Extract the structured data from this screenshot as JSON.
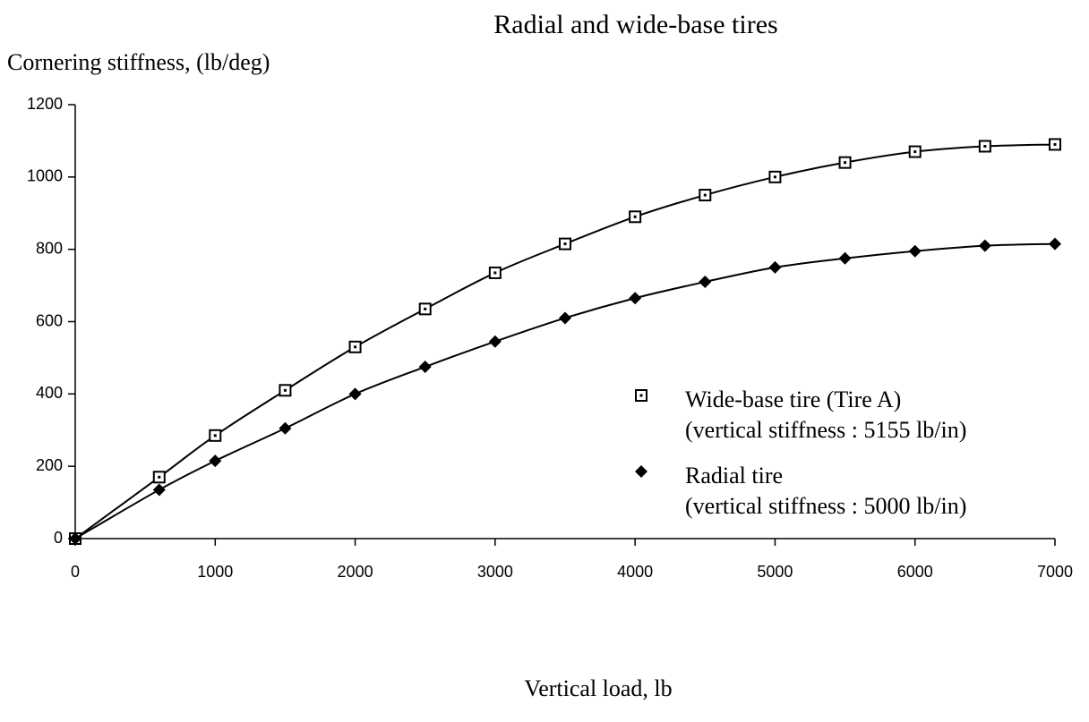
{
  "chart_data": {
    "type": "line",
    "title": "Radial and wide-base tires",
    "y_label": "Cornering stiffness, (lb/deg)",
    "x_label": "Vertical load, lb",
    "x": [
      0,
      600,
      1000,
      1500,
      2000,
      2500,
      3000,
      3500,
      4000,
      4500,
      5000,
      5500,
      6000,
      6500,
      7000
    ],
    "series": [
      {
        "name": "Wide-base tire (Tire A)",
        "description": "(vertical stiffness : 5155 lb/in)",
        "color": "#000000",
        "marker": "square",
        "values": [
          0,
          170,
          285,
          410,
          530,
          635,
          735,
          815,
          890,
          950,
          1000,
          1040,
          1070,
          1085,
          1090
        ]
      },
      {
        "name": "Radial tire",
        "description": "(vertical stiffness : 5000 lb/in)",
        "color": "#000000",
        "marker": "diamond",
        "values": [
          0,
          135,
          215,
          305,
          400,
          475,
          545,
          610,
          665,
          710,
          750,
          775,
          795,
          810,
          815
        ]
      }
    ],
    "xlim": [
      0,
      7000
    ],
    "xticks": [
      0,
      1000,
      2000,
      3000,
      4000,
      5000,
      6000,
      7000
    ],
    "ylim": [
      0,
      1200
    ],
    "yticks": [
      0,
      200,
      400,
      600,
      800,
      1000,
      1200
    ],
    "grid": false,
    "legend_position": "right"
  }
}
